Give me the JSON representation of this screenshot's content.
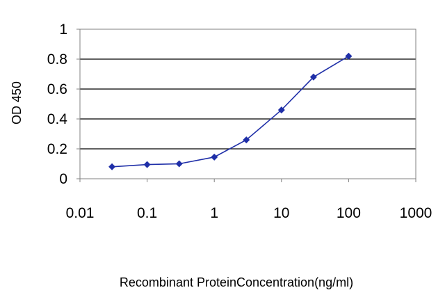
{
  "chart_data": {
    "type": "line",
    "title": "",
    "xlabel": "Recombinant ProteinConcentration(ng/ml)",
    "ylabel": "OD 450",
    "x_scale": "log",
    "xlim": [
      0.01,
      1000
    ],
    "ylim": [
      0,
      1
    ],
    "x_ticks": [
      "0.01",
      "0.1",
      "1",
      "10",
      "100",
      "1000"
    ],
    "y_ticks": [
      "0",
      "0.2",
      "0.4",
      "0.6",
      "0.8",
      "1"
    ],
    "grid": "horizontal",
    "legend": "none",
    "series": [
      {
        "color": "#1f2fa8",
        "marker": "diamond",
        "x": [
          0.03,
          0.1,
          0.3,
          1,
          3,
          10,
          30,
          100
        ],
        "y": [
          0.08,
          0.095,
          0.1,
          0.145,
          0.26,
          0.46,
          0.68,
          0.82
        ]
      }
    ]
  }
}
